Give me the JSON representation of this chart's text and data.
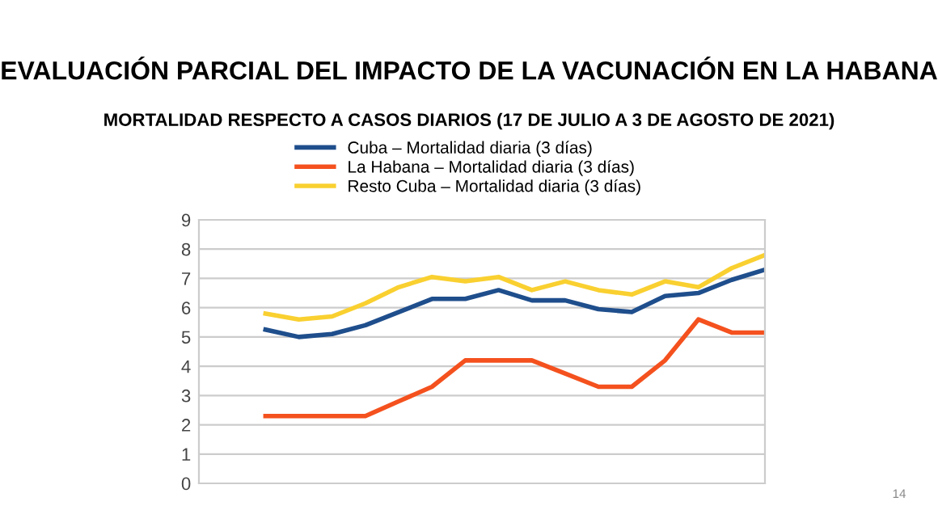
{
  "chart_data": {
    "type": "line",
    "title": "EVALUACIÓN PARCIAL DEL IMPACTO DE LA VACUNACIÓN EN LA HABANA",
    "subtitle": "MORTALIDAD RESPECTO A CASOS DIARIOS (17 DE JULIO A 3 DE AGOSTO DE 2021)",
    "categories": [
      null,
      null,
      null,
      null,
      null,
      null,
      null,
      null,
      null,
      null,
      null,
      null,
      null,
      null,
      null,
      null,
      null,
      null
    ],
    "series": [
      {
        "name": "Cuba – Mortalidad diaria (3 días)",
        "color": "#1f4e8c",
        "values": [
          null,
          null,
          5.25,
          5.0,
          5.1,
          5.4,
          5.85,
          6.3,
          6.3,
          6.6,
          6.25,
          6.25,
          5.95,
          5.85,
          6.4,
          6.5,
          6.95,
          7.3
        ]
      },
      {
        "name": "La Habana – Mortalidad diaria (3 días)",
        "color": "#f4511e",
        "values": [
          null,
          null,
          2.3,
          2.3,
          2.3,
          2.3,
          2.8,
          3.3,
          4.2,
          4.2,
          4.2,
          3.75,
          3.3,
          3.3,
          4.2,
          5.6,
          5.15,
          5.15
        ]
      },
      {
        "name": "Resto Cuba – Mortalidad diaria (3 días)",
        "color": "#f9d030",
        "values": [
          null,
          null,
          5.8,
          5.6,
          5.7,
          6.15,
          6.7,
          7.05,
          6.9,
          7.05,
          6.6,
          6.9,
          6.6,
          6.45,
          6.9,
          6.7,
          7.35,
          7.8
        ]
      }
    ],
    "ylim": [
      0,
      9
    ],
    "yticks": [
      0,
      1,
      2,
      3,
      4,
      5,
      6,
      7,
      8,
      9
    ],
    "grid": "y",
    "legend": "top",
    "marker": "none",
    "line_style": "solid",
    "annotations": [
      "14"
    ]
  }
}
